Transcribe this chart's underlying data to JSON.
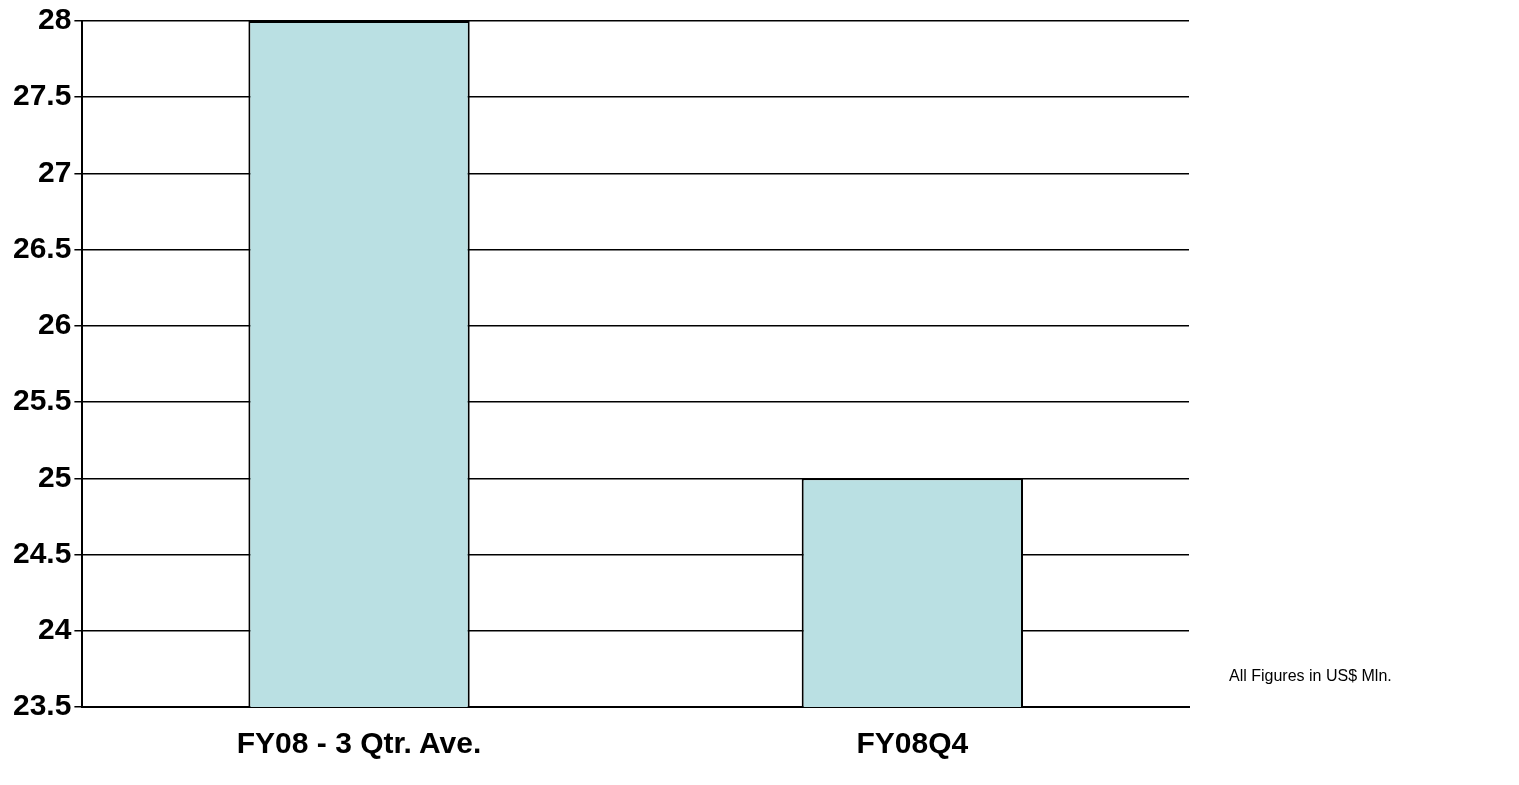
{
  "chart_data": {
    "type": "bar",
    "categories": [
      "FY08 - 3 Qtr. Ave.",
      "FY08Q4"
    ],
    "values": [
      28,
      25
    ],
    "color": "#bae0e3",
    "ylim": [
      23.5,
      28
    ],
    "yticks": [
      {
        "value": 23.5,
        "label": "23.5"
      },
      {
        "value": 24,
        "label": "24"
      },
      {
        "value": 24.5,
        "label": "24.5"
      },
      {
        "value": 25,
        "label": "25"
      },
      {
        "value": 25.5,
        "label": "25.5"
      },
      {
        "value": 26,
        "label": "26"
      },
      {
        "value": 26.5,
        "label": "26.5"
      },
      {
        "value": 27,
        "label": "27"
      },
      {
        "value": 27.5,
        "label": "27.5"
      },
      {
        "value": 28,
        "label": "28"
      }
    ],
    "grid": "y",
    "legend": false,
    "annotations": [
      "All Figures in US$ Mln."
    ]
  }
}
